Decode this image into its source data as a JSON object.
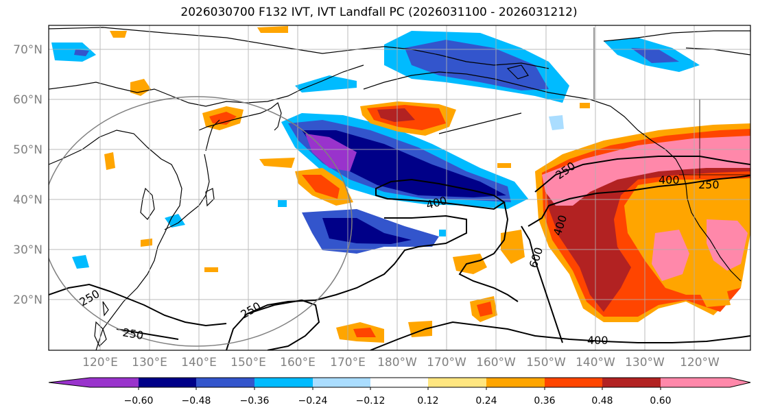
{
  "title": "2026030700 F132 IVT, IVT Landfall PC (2026031100 - 2026031212)",
  "map": {
    "lat_labels": [
      "70°N",
      "60°N",
      "50°N",
      "40°N",
      "30°N",
      "20°N"
    ],
    "lon_labels": [
      "120°E",
      "130°E",
      "140°E",
      "150°E",
      "160°E",
      "170°E",
      "180°W",
      "170°W",
      "160°W",
      "150°W",
      "140°W",
      "130°W",
      "120°W"
    ],
    "contour_labels": [
      "250",
      "400",
      "250",
      "400",
      "400",
      "600",
      "250",
      "250",
      "250",
      "400"
    ]
  },
  "colorbar": {
    "ticks": [
      "−0.60",
      "−0.48",
      "−0.36",
      "−0.24",
      "−0.12",
      "0.12",
      "0.24",
      "0.36",
      "0.48",
      "0.60"
    ],
    "colors": [
      "#9933cc",
      "#000088",
      "#3355cc",
      "#00bbff",
      "#aaddff",
      "#ffffff",
      "#ffe680",
      "#ffa500",
      "#ff4500",
      "#b22222",
      "#ff88aa",
      "#ff88aa"
    ]
  },
  "colors": {
    "land_outline": "#000000",
    "grid": "#b0b0b0",
    "contour": "#000000",
    "circle": "#808080"
  }
}
